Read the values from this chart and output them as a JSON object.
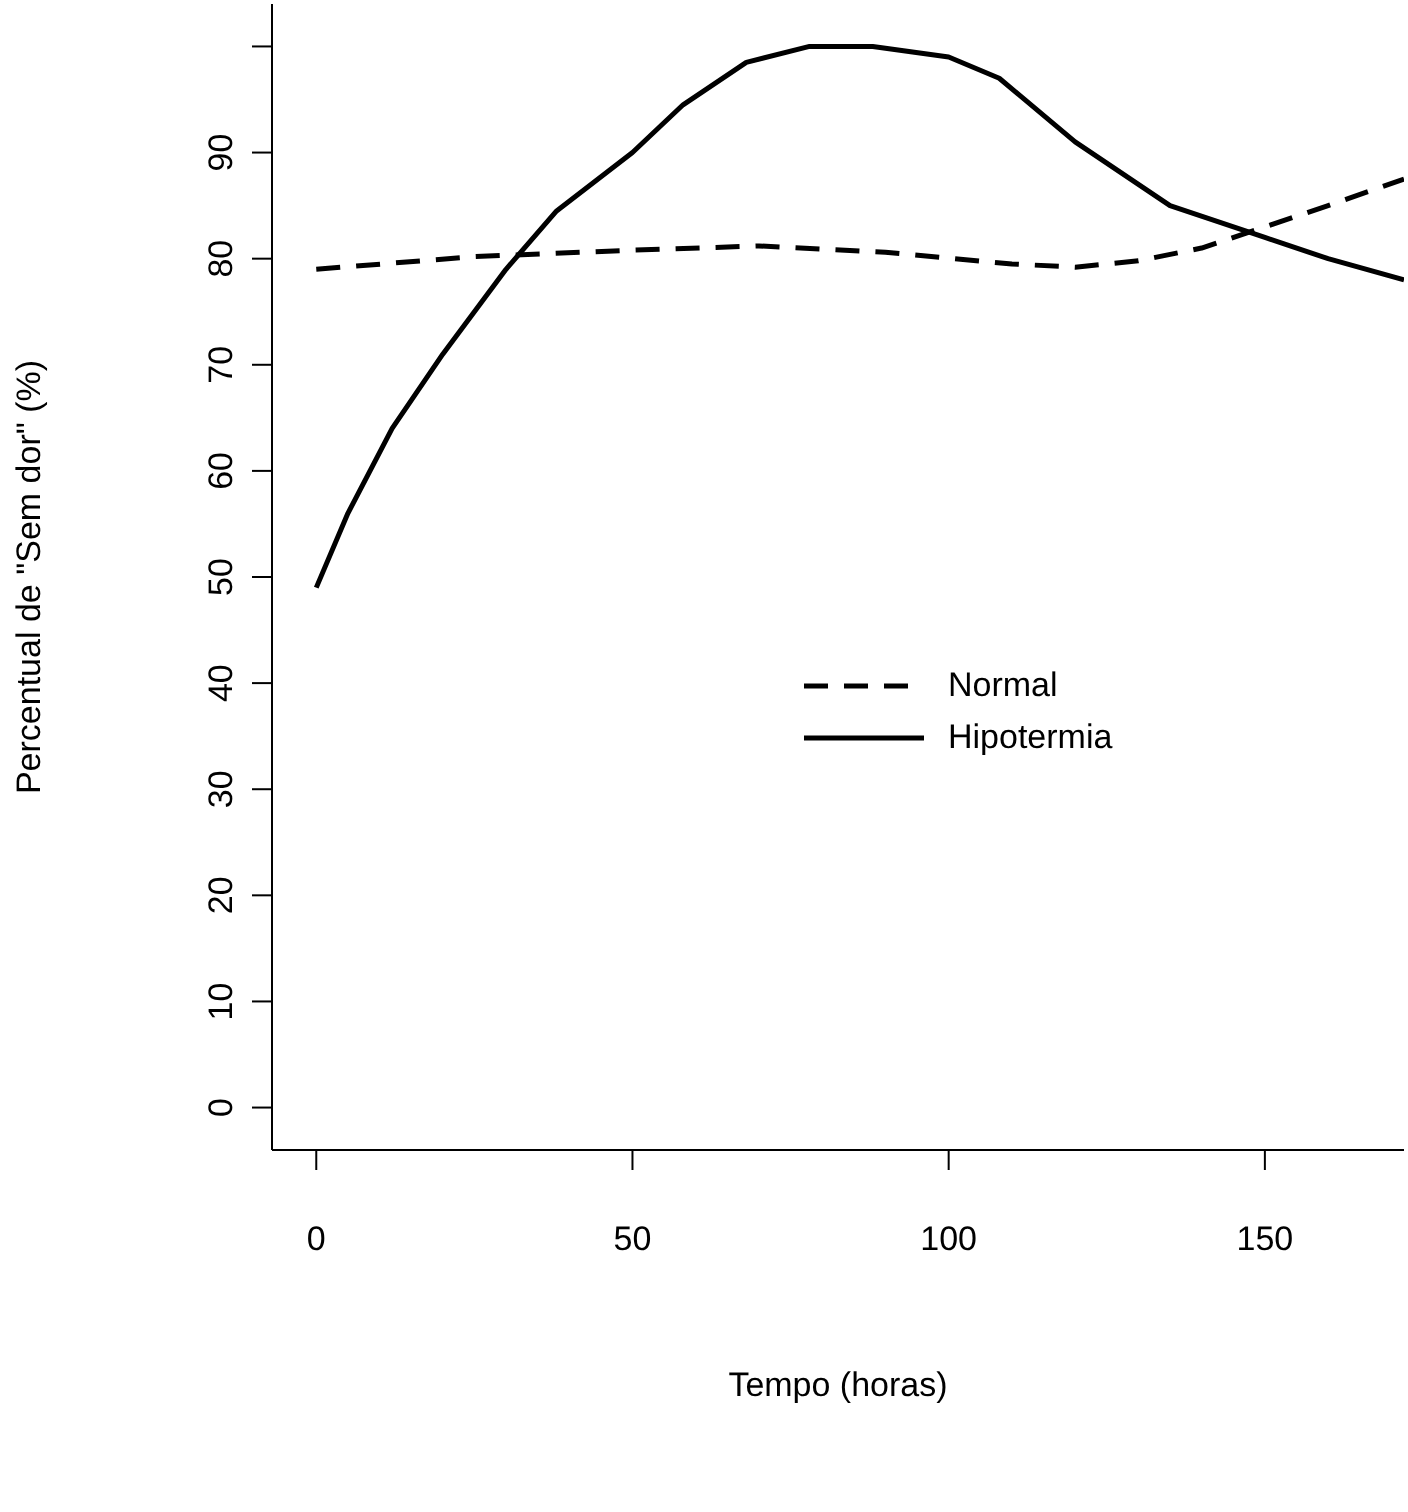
{
  "chart_data": {
    "type": "line",
    "xlabel": "Tempo (horas)",
    "ylabel": "Percentual de \"Sem dor\" (%)",
    "xlim": [
      -7,
      172
    ],
    "xticks": [
      0,
      50,
      100,
      150
    ],
    "ylim": [
      -4,
      104
    ],
    "yticks": [
      0,
      10,
      20,
      30,
      40,
      50,
      60,
      70,
      80,
      90,
      {
        "value": 100,
        "label": null
      }
    ],
    "grid": false,
    "legend": "center right",
    "series": [
      {
        "name": "Normal",
        "color": "#000000",
        "line_style": "dashed",
        "x": [
          0,
          25,
          50,
          70,
          90,
          110,
          120,
          130,
          140,
          150,
          160,
          172
        ],
        "values": [
          79,
          80.2,
          80.8,
          81.2,
          80.6,
          79.5,
          79.2,
          79.8,
          81,
          83,
          85,
          87.5
        ]
      },
      {
        "name": "Hipotermia",
        "color": "#000000",
        "line_style": "solid",
        "x": [
          0,
          5,
          12,
          20,
          30,
          38,
          50,
          58,
          68,
          78,
          88,
          100,
          108,
          120,
          135,
          150,
          160,
          172
        ],
        "values": [
          49,
          56,
          64,
          71,
          79,
          84.5,
          90,
          94.5,
          98.5,
          100,
          100,
          99,
          97,
          91,
          85,
          82,
          80,
          78
        ]
      }
    ]
  }
}
